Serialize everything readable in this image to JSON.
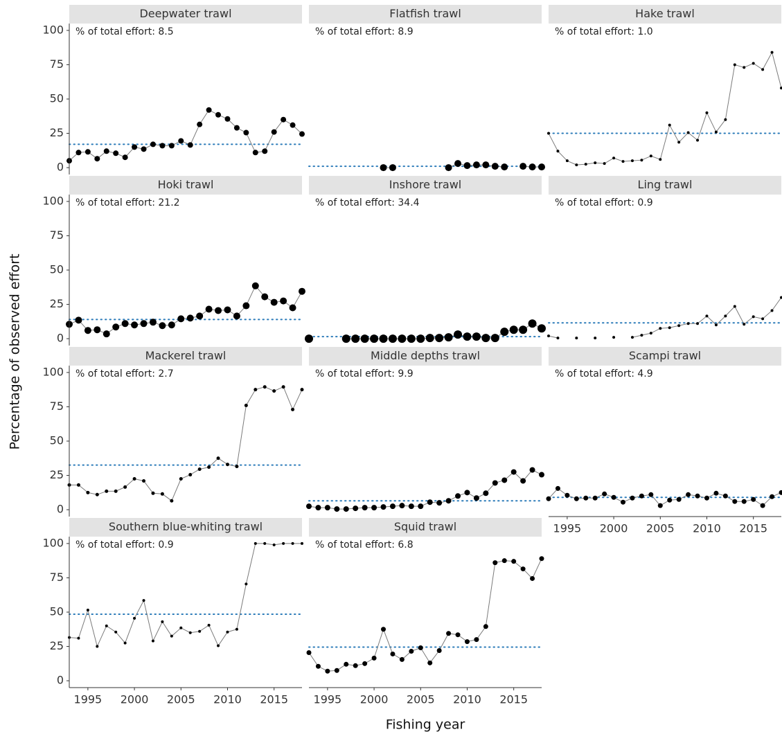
{
  "chart_data": {
    "type": "line",
    "xlabel": "Fishing year",
    "ylabel": "Percentage of observed effort",
    "x": [
      1993,
      1994,
      1995,
      1996,
      1997,
      1998,
      1999,
      2000,
      2001,
      2002,
      2003,
      2004,
      2005,
      2006,
      2007,
      2008,
      2009,
      2010,
      2011,
      2012,
      2013,
      2014,
      2015,
      2016,
      2017,
      2018
    ],
    "xlim": [
      1993,
      2018
    ],
    "xticks": [
      1995,
      2000,
      2005,
      2010,
      2015
    ],
    "ylim": [
      -5,
      105
    ],
    "yticks": [
      0,
      25,
      50,
      75,
      100
    ],
    "line_color": "#7a7a7a",
    "point_color": "#000000",
    "ref_color": "#2b7bb9",
    "note_color": "#1f6f96",
    "strip_color": "#e3e3e3",
    "panels": [
      {
        "name": "Deepwater trawl",
        "note": "% of total effort: 8.5",
        "reference": 17,
        "point_size": 4,
        "values": [
          5,
          11,
          11.5,
          6.5,
          12,
          10.5,
          7.5,
          15,
          13.5,
          17,
          16,
          16,
          19.5,
          16.5,
          31.5,
          42,
          38.5,
          35.5,
          29,
          25.5,
          11,
          12,
          26,
          35,
          31,
          24.5
        ]
      },
      {
        "name": "Flatfish trawl",
        "note": "% of total effort: 8.9",
        "reference": 1,
        "point_size": 5,
        "values": [
          null,
          null,
          null,
          null,
          null,
          null,
          null,
          null,
          0,
          0,
          null,
          null,
          null,
          null,
          null,
          0,
          3,
          1.5,
          2,
          2,
          1,
          0.5,
          null,
          1,
          0.5,
          0.5
        ]
      },
      {
        "name": "Hake trawl",
        "note": "% of total effort: 1.0",
        "reference": 25,
        "point_size": 2,
        "values": [
          25,
          12,
          5,
          2,
          2.5,
          3.5,
          3,
          7,
          4.5,
          5,
          5.5,
          8.5,
          6,
          31,
          18.5,
          25.5,
          20,
          40,
          26,
          35,
          75,
          73,
          76,
          71.5,
          84,
          58
        ]
      },
      {
        "name": "Hoki trawl",
        "note": "% of total effort: 21.2",
        "reference": 14,
        "point_size": 5,
        "values": [
          10.5,
          13.5,
          6,
          6.5,
          3.5,
          8.5,
          11,
          10,
          11,
          12,
          9.5,
          10,
          14.5,
          15,
          16.5,
          21.5,
          20.5,
          21,
          16.5,
          24,
          38.5,
          30.5,
          26.5,
          27.5,
          22.5,
          34.5
        ]
      },
      {
        "name": "Inshore trawl",
        "note": "% of total effort: 34.4",
        "reference": 1.5,
        "point_size": 6,
        "values": [
          0,
          null,
          null,
          null,
          0,
          0,
          0,
          0,
          0,
          0,
          0,
          0,
          0,
          0.5,
          0.5,
          1,
          3,
          1.5,
          1.5,
          0.5,
          0.5,
          5,
          6.5,
          6.5,
          11,
          7.5
        ]
      },
      {
        "name": "Ling trawl",
        "note": "% of total effort: 0.9",
        "reference": 11.5,
        "point_size": 2,
        "values": [
          2,
          0.5,
          null,
          0.5,
          null,
          0.5,
          null,
          1,
          null,
          1,
          2.5,
          4,
          7.5,
          8,
          9.5,
          11,
          11,
          16.5,
          10,
          16.5,
          23.5,
          10.5,
          16,
          14.5,
          20.5,
          30
        ]
      },
      {
        "name": "Mackerel trawl",
        "note": "% of total effort: 2.7",
        "reference": 32.5,
        "point_size": 2.5,
        "values": [
          18,
          18,
          12.5,
          11,
          13.5,
          13.5,
          16.5,
          22.5,
          21,
          12,
          11.5,
          6.5,
          22.5,
          25.5,
          29.5,
          31,
          37.5,
          33,
          31.5,
          76,
          87.5,
          89.5,
          86.5,
          89.5,
          73,
          87.5
        ]
      },
      {
        "name": "Middle depths trawl",
        "note": "% of total effort: 9.9",
        "reference": 6.5,
        "point_size": 4,
        "values": [
          2.5,
          1.5,
          1.5,
          0.5,
          0.5,
          1,
          1.5,
          1.5,
          2,
          2.5,
          3,
          2.5,
          2.5,
          5.5,
          5,
          6.5,
          10,
          12.5,
          8.5,
          12,
          19.5,
          21.5,
          27.5,
          21,
          29,
          25.5
        ]
      },
      {
        "name": "Scampi trawl",
        "note": "% of total effort: 4.9",
        "reference": 9,
        "point_size": 3.5,
        "values": [
          8,
          15.5,
          10.5,
          8,
          8.5,
          8.5,
          11.5,
          9,
          5.5,
          8.5,
          10,
          11,
          3,
          7,
          7.5,
          11,
          10,
          8.5,
          12,
          10,
          6,
          6,
          7.5,
          3,
          9.5,
          12.5
        ]
      },
      {
        "name": "Southern blue-whiting trawl",
        "note": "% of total effort: 0.9",
        "reference": 48.5,
        "point_size": 2,
        "values": [
          31.5,
          31,
          51.5,
          25,
          40,
          35.5,
          27.5,
          45.5,
          58.5,
          29,
          43,
          32.5,
          38.5,
          35,
          36,
          40.5,
          25.5,
          35.5,
          37.5,
          70.5,
          100,
          100,
          99,
          100,
          100,
          100
        ]
      },
      {
        "name": "Squid trawl",
        "note": "% of total effort: 6.8",
        "reference": 24.5,
        "point_size": 3.5,
        "values": [
          20.5,
          10.5,
          7,
          7.5,
          12,
          11,
          12.5,
          16.5,
          37.5,
          19.5,
          15.5,
          21.5,
          24,
          13,
          22,
          34.5,
          33.5,
          28.5,
          30,
          39.5,
          86,
          87.5,
          87,
          81.5,
          74.5,
          89
        ]
      }
    ]
  }
}
